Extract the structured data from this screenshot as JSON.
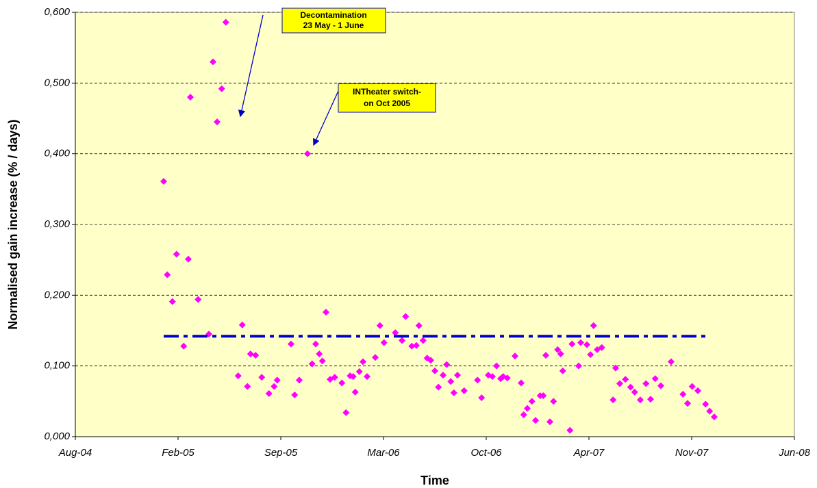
{
  "chart_data": {
    "type": "scatter",
    "x_label": "Time",
    "y_label": "Normalised gain increase (% / days)",
    "xlim": [
      38200,
      39600
    ],
    "xticks": [
      {
        "value": 38200,
        "label": "Aug-04"
      },
      {
        "value": 38400,
        "label": "Feb-05"
      },
      {
        "value": 38600,
        "label": "Sep-05"
      },
      {
        "value": 38800,
        "label": "Mar-06"
      },
      {
        "value": 39000,
        "label": "Oct-06"
      },
      {
        "value": 39200,
        "label": "Apr-07"
      },
      {
        "value": 39400,
        "label": "Nov-07"
      },
      {
        "value": 39600,
        "label": "Jun-08"
      }
    ],
    "ylim": [
      0,
      0.6
    ],
    "yticks": [
      {
        "value": 0,
        "label": "0,000"
      },
      {
        "value": 0.1,
        "label": "0,100"
      },
      {
        "value": 0.2,
        "label": "0,200"
      },
      {
        "value": 0.3,
        "label": "0,300"
      },
      {
        "value": 0.4,
        "label": "0,400"
      },
      {
        "value": 0.5,
        "label": "0,500"
      },
      {
        "value": 0.6,
        "label": "0,600"
      }
    ],
    "grid": true,
    "series": [
      {
        "type": "scatter",
        "color": "#ff00ff",
        "x": [
          38372,
          38379,
          38389,
          38397,
          38411,
          38420,
          38424,
          38439,
          38460,
          38468,
          38476,
          38485,
          38493,
          38517,
          38525,
          38535,
          38541,
          38551,
          38563,
          38577,
          38587,
          38593,
          38620,
          38627,
          38636,
          38652,
          38661,
          38668,
          38675,
          38681,
          38688,
          38696,
          38705,
          38719,
          38727,
          38735,
          38741,
          38745,
          38753,
          38760,
          38768,
          38784,
          38793,
          38801,
          38823,
          38836,
          38843,
          38855,
          38864,
          38869,
          38877,
          38885,
          38892,
          38900,
          38907,
          38916,
          38923,
          38931,
          38937,
          38944,
          38957,
          38983,
          38991,
          39004,
          39012,
          39020,
          39028,
          39033,
          39041,
          39056,
          39068,
          39073,
          39080,
          39089,
          39096,
          39105,
          39111,
          39116,
          39124,
          39131,
          39139,
          39145,
          39149,
          39163,
          39167,
          39180,
          39184,
          39196,
          39203,
          39209,
          39216,
          39225,
          39247,
          39252,
          39260,
          39271,
          39281,
          39289,
          39300,
          39311,
          39320,
          39329,
          39340,
          39360,
          39383,
          39392,
          39401,
          39412,
          39427,
          39435,
          39444
        ],
        "values": [
          0.361,
          0.229,
          0.191,
          0.258,
          0.128,
          0.251,
          0.48,
          0.194,
          0.145,
          0.53,
          0.445,
          0.492,
          0.586,
          0.086,
          0.158,
          0.071,
          0.117,
          0.115,
          0.084,
          0.061,
          0.071,
          0.08,
          0.131,
          0.059,
          0.08,
          0.4,
          0.103,
          0.131,
          0.117,
          0.107,
          0.176,
          0.081,
          0.084,
          0.076,
          0.034,
          0.086,
          0.085,
          0.063,
          0.092,
          0.106,
          0.085,
          0.112,
          0.157,
          0.133,
          0.147,
          0.136,
          0.17,
          0.128,
          0.129,
          0.157,
          0.136,
          0.111,
          0.108,
          0.093,
          0.07,
          0.087,
          0.102,
          0.078,
          0.062,
          0.087,
          0.065,
          0.08,
          0.055,
          0.087,
          0.085,
          0.1,
          0.082,
          0.085,
          0.083,
          0.114,
          0.076,
          0.031,
          0.04,
          0.05,
          0.023,
          0.058,
          0.058,
          0.115,
          0.021,
          0.05,
          0.123,
          0.117,
          0.093,
          0.009,
          0.131,
          0.1,
          0.133,
          0.13,
          0.116,
          0.157,
          0.123,
          0.126,
          0.052,
          0.097,
          0.075,
          0.081,
          0.07,
          0.063,
          0.052,
          0.075,
          0.053,
          0.082,
          0.072,
          0.106,
          0.06,
          0.047,
          0.071,
          0.065,
          0.046,
          0.036,
          0.028
        ]
      },
      {
        "type": "line",
        "color": "#0000cc",
        "x": [
          38372,
          39429
        ],
        "values": [
          0.142,
          0.142
        ]
      }
    ],
    "annotations": [
      {
        "lines": [
          "Decontamination",
          "23 May - 1 June"
        ]
      },
      {
        "lines": [
          "INTheater switch-",
          "on Oct 2005"
        ]
      }
    ]
  }
}
